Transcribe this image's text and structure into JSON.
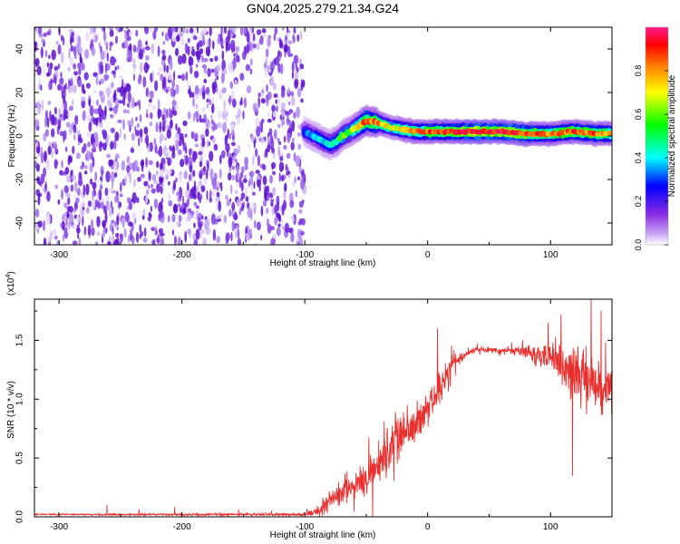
{
  "title": "GN04.2025.279.21.34.G24",
  "chart_data": [
    {
      "type": "heatmap",
      "xlabel": "Height of straight line (km)",
      "ylabel": "Frequency (Hz)",
      "xlim": [
        -320,
        150
      ],
      "ylim": [
        -50,
        50
      ],
      "xticks": [
        -300,
        -200,
        -100,
        0,
        100
      ],
      "xtick_labels": [
        "-300",
        "-200",
        "-100",
        "0",
        "100"
      ],
      "yticks": [
        -40,
        -20,
        0,
        20,
        40
      ],
      "ytick_labels": [
        "-40",
        "-20",
        "0",
        "20",
        "40"
      ],
      "noise_region_x": [
        -320,
        -100
      ],
      "signal_trace": {
        "x": [
          -100,
          -90,
          -80,
          -75,
          -70,
          -60,
          -50,
          -40,
          -30,
          -20,
          -10,
          0,
          20,
          40,
          60,
          80,
          100,
          120,
          140,
          150
        ],
        "frequency": [
          2,
          -1,
          -4,
          -3,
          0,
          3,
          7,
          6,
          4,
          3,
          2,
          2,
          2,
          2,
          2,
          1,
          1,
          2,
          1,
          1
        ],
        "amplitude": [
          0.3,
          0.35,
          0.4,
          0.45,
          0.5,
          0.55,
          0.8,
          0.75,
          0.6,
          0.65,
          0.7,
          0.75,
          0.85,
          0.9,
          0.9,
          0.85,
          0.7,
          0.8,
          0.75,
          0.7
        ]
      },
      "colorbar": {
        "label": "Normalized spectral amplitude",
        "range": [
          0,
          1
        ],
        "ticks": [
          0,
          0.2,
          0.4,
          0.6,
          0.8
        ],
        "tick_labels": [
          "0.0",
          "0.2",
          "0.4",
          "0.6",
          "0.8"
        ],
        "colors": [
          "#ffffff",
          "#8a2be2",
          "#0000ff",
          "#00ffff",
          "#00ff00",
          "#ffff00",
          "#ff8000",
          "#ff0000",
          "#ff1a8c"
        ]
      }
    },
    {
      "type": "line",
      "xlabel": "Height of straight line (km)",
      "ylabel": "SNR (10 * v/v)",
      "multiplier_label": "(x10",
      "multiplier_exp": "4",
      "multiplier_close": ")",
      "color": "#e8302e",
      "xlim": [
        -320,
        150
      ],
      "ylim": [
        0,
        1.85
      ],
      "xticks": [
        -300,
        -200,
        -100,
        0,
        100
      ],
      "xtick_labels": [
        "-300",
        "-200",
        "-100",
        "0",
        "100"
      ],
      "yticks": [
        0,
        0.5,
        1.0,
        1.5
      ],
      "ytick_labels": [
        "0.0",
        "0.5",
        "1.0",
        "1.5"
      ],
      "envelope": {
        "x": [
          -320,
          -100,
          -90,
          -80,
          -70,
          -60,
          -50,
          -40,
          -30,
          -20,
          -10,
          0,
          10,
          20,
          30,
          40,
          50,
          60,
          70,
          80,
          90,
          100,
          110,
          120,
          130,
          140,
          150
        ],
        "mean": [
          0.02,
          0.02,
          0.05,
          0.12,
          0.22,
          0.25,
          0.3,
          0.45,
          0.6,
          0.75,
          0.8,
          0.9,
          1.1,
          1.3,
          1.38,
          1.42,
          1.42,
          1.41,
          1.41,
          1.4,
          1.38,
          1.35,
          1.3,
          1.2,
          1.15,
          1.1,
          1.1
        ],
        "spread": [
          0.01,
          0.02,
          0.06,
          0.14,
          0.2,
          0.15,
          0.22,
          0.28,
          0.3,
          0.25,
          0.25,
          0.25,
          0.22,
          0.12,
          0.05,
          0.03,
          0.03,
          0.03,
          0.05,
          0.08,
          0.15,
          0.2,
          0.3,
          0.35,
          0.35,
          0.3,
          0.3
        ]
      },
      "spikes": [
        {
          "x": -261,
          "y": 0.1
        },
        {
          "x": -235,
          "y": 0.06
        },
        {
          "x": -206,
          "y": 0.08
        },
        {
          "x": -154,
          "y": 0.06
        },
        {
          "x": -127,
          "y": 0.05
        },
        {
          "x": 8,
          "y": 1.6
        },
        {
          "x": 98,
          "y": 1.65
        },
        {
          "x": 133,
          "y": 1.85
        },
        {
          "x": 141,
          "y": 1.75
        },
        {
          "x": 118,
          "y": 0.35
        }
      ]
    }
  ]
}
